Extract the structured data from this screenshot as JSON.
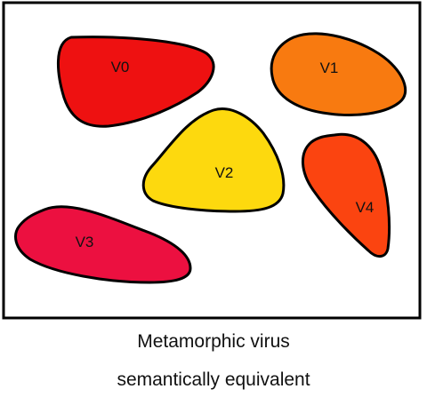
{
  "diagram": {
    "shapes": [
      {
        "label": "V0",
        "color": "#ee1111"
      },
      {
        "label": "V1",
        "color": "#f87a10"
      },
      {
        "label": "V2",
        "color": "#fdd90e"
      },
      {
        "label": "V3",
        "color": "#ec1040"
      },
      {
        "label": "V4",
        "color": "#fb4410"
      }
    ]
  },
  "caption": {
    "line1": "Metamorphic virus",
    "line2": "semantically equivalent"
  }
}
